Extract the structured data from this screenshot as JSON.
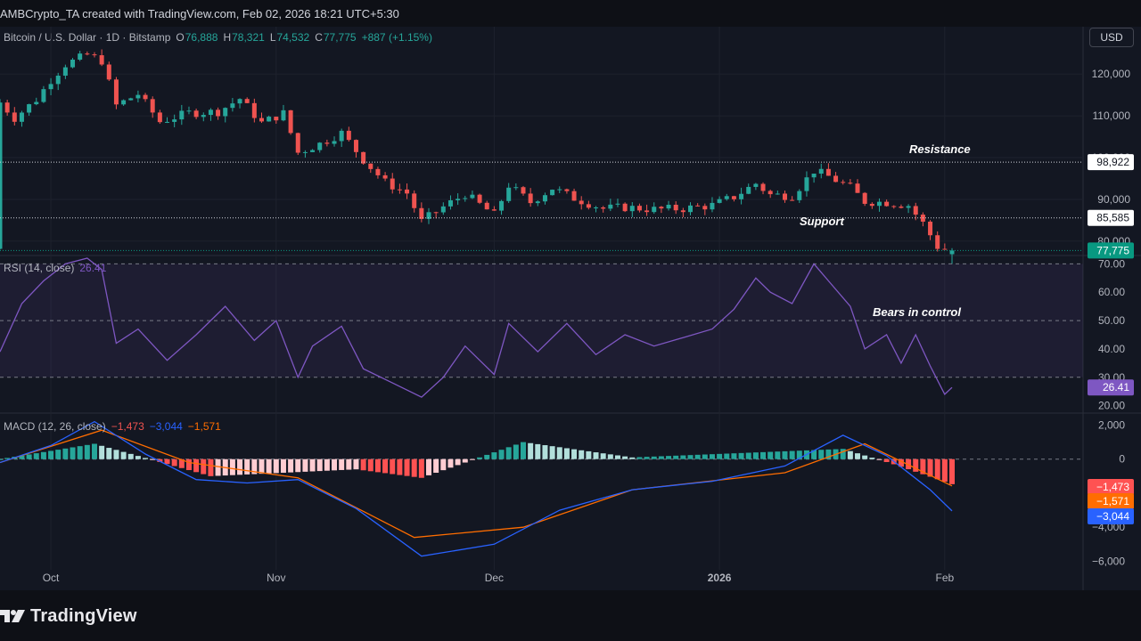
{
  "header": {
    "title": "AMBCrypto_TA created with TradingView.com, Feb 02, 2026 18:21 UTC+5:30"
  },
  "symbol": {
    "name": "Bitcoin / U.S. Dollar · 1D · Bitstamp",
    "o_label": "O",
    "o_value": "76,888",
    "h_label": "H",
    "h_value": "78,321",
    "l_label": "L",
    "l_value": "74,532",
    "c_label": "C",
    "c_value": "77,775",
    "change": "+887 (+1.15%)"
  },
  "currency_button": "USD",
  "annotations": {
    "resistance": "Resistance",
    "support": "Support",
    "bears": "Bears in control"
  },
  "price_axis": {
    "ticks": [
      "120,000",
      "110,000",
      "100,000",
      "90,000",
      "80,000"
    ],
    "resistance_label": "98,922",
    "support_label": "85,585",
    "last_label": "77,775"
  },
  "rsi": {
    "title": "RSI (14, close)",
    "value": "26.41",
    "ticks": [
      "70.00",
      "60.00",
      "50.00",
      "40.00",
      "30.00",
      "20.00"
    ],
    "last_label": "26.41"
  },
  "macd": {
    "title": "MACD (12, 26, close)",
    "hist": "−1,473",
    "macd": "−3,044",
    "signal": "−1,571",
    "ticks": [
      "2,000",
      "0",
      "−4,000",
      "−6,000"
    ],
    "labels": [
      "−1,473",
      "−1,571",
      "−3,044"
    ]
  },
  "time_axis": [
    "Oct",
    "Nov",
    "Dec",
    "2026",
    "Feb"
  ],
  "footer": {
    "brand": "TradingView"
  },
  "colors": {
    "bg": "#131722",
    "up": "#26a69a",
    "down": "#ef5350",
    "rsi": "#7e57c2",
    "macd": "#2962ff",
    "signal": "#ff6d00",
    "last": "#089981"
  },
  "chart_data": [
    {
      "type": "candlestick",
      "title": "Bitcoin / U.S. Dollar · 1D · Bitstamp",
      "x_range": [
        "2025-09-24",
        "2026-02-02"
      ],
      "ylim": [
        77000,
        126000
      ],
      "horizontal_levels": [
        {
          "name": "Resistance",
          "value": 98922
        },
        {
          "name": "Support",
          "value": 85585
        }
      ],
      "last": {
        "open": 76888,
        "high": 78321,
        "low": 74532,
        "close": 77775
      },
      "close_series": [
        {
          "x": "2025-09-24",
          "y": 113200
        },
        {
          "x": "2025-09-26",
          "y": 109500
        },
        {
          "x": "2025-09-29",
          "y": 113900
        },
        {
          "x": "2025-10-01",
          "y": 118600
        },
        {
          "x": "2025-10-03",
          "y": 122300
        },
        {
          "x": "2025-10-06",
          "y": 124600
        },
        {
          "x": "2025-10-08",
          "y": 123200
        },
        {
          "x": "2025-10-10",
          "y": 112500
        },
        {
          "x": "2025-10-13",
          "y": 115200
        },
        {
          "x": "2025-10-16",
          "y": 108600
        },
        {
          "x": "2025-10-20",
          "y": 110700
        },
        {
          "x": "2025-10-24",
          "y": 111000
        },
        {
          "x": "2025-10-27",
          "y": 114100
        },
        {
          "x": "2025-10-30",
          "y": 108300
        },
        {
          "x": "2025-11-02",
          "y": 110600
        },
        {
          "x": "2025-11-04",
          "y": 101200
        },
        {
          "x": "2025-11-07",
          "y": 103300
        },
        {
          "x": "2025-11-10",
          "y": 105900
        },
        {
          "x": "2025-11-13",
          "y": 99500
        },
        {
          "x": "2025-11-16",
          "y": 94100
        },
        {
          "x": "2025-11-19",
          "y": 91500
        },
        {
          "x": "2025-11-21",
          "y": 84700
        },
        {
          "x": "2025-11-24",
          "y": 88200
        },
        {
          "x": "2025-11-27",
          "y": 91300
        },
        {
          "x": "2025-12-01",
          "y": 86300
        },
        {
          "x": "2025-12-03",
          "y": 93400
        },
        {
          "x": "2025-12-06",
          "y": 89300
        },
        {
          "x": "2025-12-09",
          "y": 92700
        },
        {
          "x": "2025-12-12",
          "y": 90300
        },
        {
          "x": "2025-12-16",
          "y": 87800
        },
        {
          "x": "2025-12-19",
          "y": 88100
        },
        {
          "x": "2025-12-23",
          "y": 87600
        },
        {
          "x": "2025-12-27",
          "y": 87800
        },
        {
          "x": "2025-12-31",
          "y": 88600
        },
        {
          "x": "2026-01-03",
          "y": 90600
        },
        {
          "x": "2026-01-06",
          "y": 93800
        },
        {
          "x": "2026-01-08",
          "y": 91100
        },
        {
          "x": "2026-01-11",
          "y": 90900
        },
        {
          "x": "2026-01-14",
          "y": 96900
        },
        {
          "x": "2026-01-16",
          "y": 95500
        },
        {
          "x": "2026-01-19",
          "y": 92800
        },
        {
          "x": "2026-01-21",
          "y": 89500
        },
        {
          "x": "2026-01-24",
          "y": 89300
        },
        {
          "x": "2026-01-27",
          "y": 88600
        },
        {
          "x": "2026-01-29",
          "y": 84300
        },
        {
          "x": "2026-01-31",
          "y": 78700
        },
        {
          "x": "2026-02-02",
          "y": 77775
        }
      ]
    },
    {
      "type": "line",
      "title": "RSI (14, close)",
      "ylim": [
        20,
        72
      ],
      "bands": [
        30,
        50,
        70
      ],
      "series": [
        {
          "name": "RSI (14, close)",
          "last": 26.41,
          "points": [
            {
              "x": "2025-09-24",
              "y": 39
            },
            {
              "x": "2025-09-27",
              "y": 56
            },
            {
              "x": "2025-09-30",
              "y": 64
            },
            {
              "x": "2025-10-03",
              "y": 70
            },
            {
              "x": "2025-10-06",
              "y": 72
            },
            {
              "x": "2025-10-08",
              "y": 68
            },
            {
              "x": "2025-10-10",
              "y": 42
            },
            {
              "x": "2025-10-13",
              "y": 47
            },
            {
              "x": "2025-10-17",
              "y": 36
            },
            {
              "x": "2025-10-21",
              "y": 45
            },
            {
              "x": "2025-10-25",
              "y": 55
            },
            {
              "x": "2025-10-29",
              "y": 43
            },
            {
              "x": "2025-11-01",
              "y": 50
            },
            {
              "x": "2025-11-04",
              "y": 30
            },
            {
              "x": "2025-11-06",
              "y": 41
            },
            {
              "x": "2025-11-10",
              "y": 48
            },
            {
              "x": "2025-11-13",
              "y": 33
            },
            {
              "x": "2025-11-17",
              "y": 28
            },
            {
              "x": "2025-11-21",
              "y": 23
            },
            {
              "x": "2025-11-24",
              "y": 30
            },
            {
              "x": "2025-11-27",
              "y": 41
            },
            {
              "x": "2025-12-01",
              "y": 31
            },
            {
              "x": "2025-12-03",
              "y": 49
            },
            {
              "x": "2025-12-07",
              "y": 39
            },
            {
              "x": "2025-12-11",
              "y": 49
            },
            {
              "x": "2025-12-15",
              "y": 38
            },
            {
              "x": "2025-12-19",
              "y": 45
            },
            {
              "x": "2025-12-23",
              "y": 41
            },
            {
              "x": "2025-12-27",
              "y": 44
            },
            {
              "x": "2025-12-31",
              "y": 47
            },
            {
              "x": "2026-01-03",
              "y": 54
            },
            {
              "x": "2026-01-06",
              "y": 65
            },
            {
              "x": "2026-01-08",
              "y": 60
            },
            {
              "x": "2026-01-11",
              "y": 56
            },
            {
              "x": "2026-01-14",
              "y": 70
            },
            {
              "x": "2026-01-16",
              "y": 64
            },
            {
              "x": "2026-01-19",
              "y": 55
            },
            {
              "x": "2026-01-21",
              "y": 40
            },
            {
              "x": "2026-01-24",
              "y": 45
            },
            {
              "x": "2026-01-26",
              "y": 35
            },
            {
              "x": "2026-01-28",
              "y": 45
            },
            {
              "x": "2026-01-30",
              "y": 34
            },
            {
              "x": "2026-02-01",
              "y": 24
            },
            {
              "x": "2026-02-02",
              "y": 26.41
            }
          ]
        }
      ]
    },
    {
      "type": "bar",
      "title": "MACD (12, 26, close)",
      "ylim": [
        -6500,
        2600
      ],
      "series": [
        {
          "name": "MACD (12, 26, close)",
          "last": -3044,
          "points": [
            {
              "x": "2025-09-24",
              "y": -200
            },
            {
              "x": "2025-10-01",
              "y": 800
            },
            {
              "x": "2025-10-07",
              "y": 2200
            },
            {
              "x": "2025-10-14",
              "y": 300
            },
            {
              "x": "2025-10-21",
              "y": -1200
            },
            {
              "x": "2025-10-28",
              "y": -1400
            },
            {
              "x": "2025-11-04",
              "y": -1200
            },
            {
              "x": "2025-11-12",
              "y": -2900
            },
            {
              "x": "2025-11-21",
              "y": -5700
            },
            {
              "x": "2025-12-01",
              "y": -5000
            },
            {
              "x": "2025-12-10",
              "y": -3000
            },
            {
              "x": "2025-12-20",
              "y": -1800
            },
            {
              "x": "2025-12-31",
              "y": -1300
            },
            {
              "x": "2026-01-10",
              "y": -400
            },
            {
              "x": "2026-01-18",
              "y": 1400
            },
            {
              "x": "2026-01-24",
              "y": 200
            },
            {
              "x": "2026-01-30",
              "y": -1800
            },
            {
              "x": "2026-02-02",
              "y": -3044
            }
          ]
        },
        {
          "name": "signal",
          "last": -1571,
          "points": [
            {
              "x": "2025-09-24",
              "y": -200
            },
            {
              "x": "2025-10-08",
              "y": 1700
            },
            {
              "x": "2025-10-20",
              "y": -200
            },
            {
              "x": "2025-11-04",
              "y": -1100
            },
            {
              "x": "2025-11-20",
              "y": -4600
            },
            {
              "x": "2025-12-05",
              "y": -4000
            },
            {
              "x": "2025-12-20",
              "y": -1800
            },
            {
              "x": "2026-01-10",
              "y": -800
            },
            {
              "x": "2026-01-21",
              "y": 900
            },
            {
              "x": "2026-02-02",
              "y": -1571
            }
          ]
        },
        {
          "name": "histogram",
          "last": -1473,
          "points": [
            {
              "x": "2025-10-07",
              "y": 900
            },
            {
              "x": "2025-10-23",
              "y": -1000
            },
            {
              "x": "2025-11-12",
              "y": -600
            },
            {
              "x": "2025-11-21",
              "y": -1100
            },
            {
              "x": "2025-12-05",
              "y": 1000
            },
            {
              "x": "2025-12-20",
              "y": 100
            },
            {
              "x": "2026-01-18",
              "y": 600
            },
            {
              "x": "2026-01-25",
              "y": -300
            },
            {
              "x": "2026-02-02",
              "y": -1473
            }
          ]
        }
      ]
    }
  ]
}
